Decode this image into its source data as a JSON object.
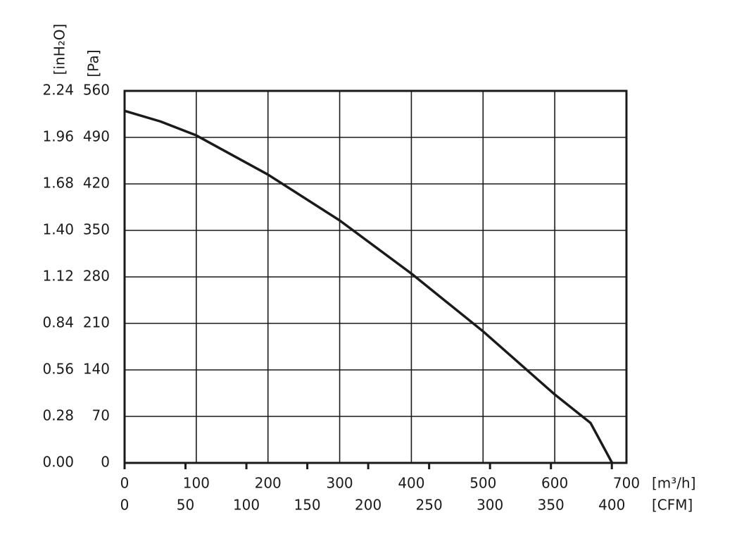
{
  "chart_data": {
    "type": "line",
    "x": [
      0,
      50,
      100,
      200,
      300,
      400,
      500,
      600,
      650,
      680
    ],
    "series": [
      {
        "color": "#1a1a1a",
        "values": [
          530,
          514,
          493,
          434,
          365,
          285,
          198,
          103,
          60,
          0
        ]
      }
    ],
    "xlim": [
      0,
      700
    ],
    "xticks": [
      0,
      100,
      200,
      300,
      400,
      500,
      600,
      700
    ],
    "xlabel": "[m³/h]",
    "x2lim": [
      0,
      412
    ],
    "x2ticks": [
      0,
      50,
      100,
      150,
      200,
      250,
      300,
      350,
      400
    ],
    "x2label": "[CFM]",
    "ylim": [
      0,
      560
    ],
    "yticks": [
      0,
      70,
      140,
      210,
      280,
      350,
      420,
      490,
      560
    ],
    "ylabel": "[Pa]",
    "y2lim": [
      0,
      2.24
    ],
    "y2ticks": [
      {
        "value": 0,
        "label": "0.00"
      },
      0.28,
      0.56,
      0.84,
      1.12,
      {
        "value": 1.4,
        "label": "1.40"
      },
      1.68,
      1.96,
      2.24
    ],
    "y2label": "[inH₂O]",
    "grid": true
  }
}
